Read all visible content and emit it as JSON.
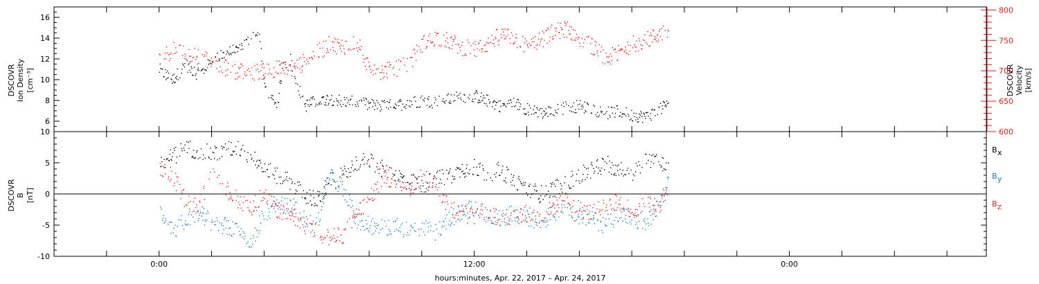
{
  "chart_data": [
    {
      "type": "scatter",
      "panel": "top",
      "ylabel_left": [
        "DSCOVR",
        "Ion Density",
        "[cm⁻³]"
      ],
      "ylabel_right": [
        "DSCOVR",
        "Velocity",
        "[km/s]"
      ],
      "ylim_left": [
        5,
        17
      ],
      "yticks_left": [
        6,
        8,
        10,
        12,
        14,
        16
      ],
      "ylim_right": [
        600,
        805
      ],
      "yticks_right": [
        600,
        650,
        700,
        750,
        800
      ],
      "right_axis_color": "#e31a1c",
      "series": [
        {
          "axis": "left",
          "color": "#000000",
          "x": [
            0.0,
            0.5,
            1.0,
            1.5,
            2.0,
            2.5,
            3.0,
            3.5,
            3.8,
            4.0,
            4.2,
            4.5,
            4.7,
            5.0,
            5.5,
            6.0,
            6.5,
            7.0,
            7.5,
            8.0,
            8.5,
            9.0,
            9.5,
            10.0,
            10.5,
            11.0,
            11.5,
            12.0,
            12.5,
            13.0,
            13.5,
            14.0,
            14.5,
            15.0,
            15.5,
            16.0,
            16.5,
            17.0,
            17.5,
            18.0,
            18.5,
            19.0,
            19.4
          ],
          "values": [
            11.0,
            10.0,
            11.5,
            10.5,
            11.8,
            12.5,
            13.0,
            14.0,
            14.5,
            9.5,
            8.0,
            7.8,
            11.5,
            12.0,
            7.5,
            8.0,
            8.2,
            8.0,
            7.8,
            7.6,
            7.5,
            7.6,
            7.8,
            8.0,
            7.9,
            8.1,
            8.4,
            8.5,
            8.0,
            7.5,
            7.8,
            7.2,
            6.8,
            7.0,
            7.4,
            7.5,
            7.2,
            6.8,
            7.0,
            6.6,
            6.5,
            7.0,
            8.0
          ]
        },
        {
          "axis": "right",
          "color": "#e31a1c",
          "x": [
            0.0,
            0.5,
            1.0,
            1.5,
            2.0,
            2.5,
            3.0,
            3.5,
            4.0,
            4.5,
            5.0,
            5.5,
            6.0,
            6.5,
            7.0,
            7.5,
            8.0,
            8.5,
            9.0,
            9.5,
            10.0,
            10.5,
            11.0,
            11.5,
            12.0,
            12.5,
            13.0,
            13.5,
            14.0,
            14.5,
            15.0,
            15.5,
            16.0,
            16.5,
            17.0,
            17.5,
            18.0,
            18.5,
            19.0,
            19.4
          ],
          "values": [
            720,
            735,
            730,
            725,
            712,
            705,
            700,
            698,
            700,
            705,
            700,
            715,
            730,
            745,
            740,
            750,
            705,
            700,
            705,
            710,
            745,
            755,
            750,
            740,
            735,
            745,
            760,
            755,
            740,
            750,
            765,
            770,
            755,
            740,
            720,
            730,
            745,
            750,
            760,
            770
          ]
        }
      ]
    },
    {
      "type": "scatter",
      "panel": "bottom",
      "ylabel": [
        "DSCOVR",
        "B",
        "[nT]"
      ],
      "ylim": [
        -10,
        10
      ],
      "yticks": [
        -10,
        -5,
        0,
        5,
        10
      ],
      "zero_line": true,
      "legend_placement": "right",
      "series": [
        {
          "name": "Bx",
          "label_main": "B",
          "label_sub": "x",
          "color": "#000000",
          "x": [
            0.0,
            0.5,
            1.0,
            1.5,
            2.0,
            2.5,
            3.0,
            3.5,
            4.0,
            4.5,
            5.0,
            5.5,
            6.0,
            6.5,
            7.0,
            7.5,
            8.0,
            8.5,
            9.0,
            9.5,
            10.0,
            10.5,
            11.0,
            11.5,
            12.0,
            12.5,
            13.0,
            13.5,
            14.0,
            14.5,
            15.0,
            15.5,
            16.0,
            16.5,
            17.0,
            17.5,
            18.0,
            18.5,
            19.0,
            19.4
          ],
          "values": [
            5.0,
            6.0,
            7.5,
            7.0,
            6.5,
            7.0,
            7.5,
            6.0,
            4.0,
            3.0,
            2.0,
            0.0,
            -1.0,
            2.0,
            3.0,
            5.0,
            5.5,
            4.0,
            3.0,
            2.0,
            1.5,
            2.5,
            3.0,
            4.0,
            4.5,
            3.0,
            4.0,
            2.0,
            1.0,
            0.0,
            1.0,
            2.0,
            3.0,
            4.0,
            5.0,
            4.0,
            3.0,
            5.5,
            5.5,
            4.5
          ]
        },
        {
          "name": "By",
          "label_main": "B",
          "label_sub": "y",
          "color": "#1f78d1",
          "x": [
            0.0,
            0.5,
            1.0,
            1.5,
            2.0,
            2.5,
            3.0,
            3.5,
            4.0,
            4.5,
            5.0,
            5.5,
            6.0,
            6.5,
            7.0,
            7.5,
            8.0,
            8.5,
            9.0,
            9.5,
            10.0,
            10.5,
            11.0,
            11.5,
            12.0,
            12.5,
            13.0,
            13.5,
            14.0,
            14.5,
            15.0,
            15.5,
            16.0,
            16.5,
            17.0,
            17.5,
            18.0,
            18.5,
            19.0,
            19.4
          ],
          "values": [
            -2.0,
            -6.0,
            -4.0,
            -3.0,
            -4.5,
            -5.0,
            -6.0,
            -7.5,
            -3.0,
            -2.0,
            -1.5,
            -4.0,
            -5.0,
            3.0,
            1.0,
            -4.0,
            -5.0,
            -5.5,
            -5.0,
            -6.0,
            -5.5,
            -6.0,
            -4.0,
            -3.0,
            -2.0,
            -3.5,
            -4.0,
            -3.0,
            -4.0,
            -4.5,
            -3.0,
            -2.0,
            -3.5,
            -4.0,
            -5.0,
            -3.0,
            -4.0,
            -5.0,
            -2.0,
            2.0
          ]
        },
        {
          "name": "Bz",
          "label_main": "B",
          "label_sub": "z",
          "color": "#e31a1c",
          "x": [
            0.0,
            0.5,
            1.0,
            1.5,
            2.0,
            2.5,
            3.0,
            3.5,
            4.0,
            4.5,
            5.0,
            5.5,
            6.0,
            6.5,
            7.0,
            7.5,
            8.0,
            8.5,
            9.0,
            9.5,
            10.0,
            10.5,
            11.0,
            11.5,
            12.0,
            12.5,
            13.0,
            13.5,
            14.0,
            14.5,
            15.0,
            15.5,
            16.0,
            16.5,
            17.0,
            17.5,
            18.0,
            18.5,
            19.0,
            19.4
          ],
          "values": [
            4.0,
            3.0,
            -1.0,
            -2.0,
            3.0,
            1.0,
            -1.0,
            -2.0,
            0.0,
            -2.5,
            -3.0,
            -5.0,
            -6.0,
            -7.0,
            -6.5,
            -3.0,
            -1.0,
            3.0,
            2.0,
            1.0,
            3.0,
            2.0,
            -2.0,
            -3.0,
            -3.5,
            -3.0,
            -4.0,
            -3.5,
            -3.0,
            -4.0,
            -2.0,
            -1.0,
            -2.5,
            -3.0,
            -2.0,
            -1.0,
            -3.0,
            -1.5,
            -2.0,
            1.0
          ]
        }
      ]
    }
  ],
  "time_axis": {
    "xlim_hours": [
      -4,
      31.5
    ],
    "labels": [
      {
        "hour": 0,
        "text": "0:00"
      },
      {
        "hour": 12,
        "text": "12:00"
      },
      {
        "hour": 24,
        "text": "0:00"
      }
    ],
    "xlabel": "hours:minutes, Apr. 22, 2017 – Apr. 24, 2017"
  }
}
